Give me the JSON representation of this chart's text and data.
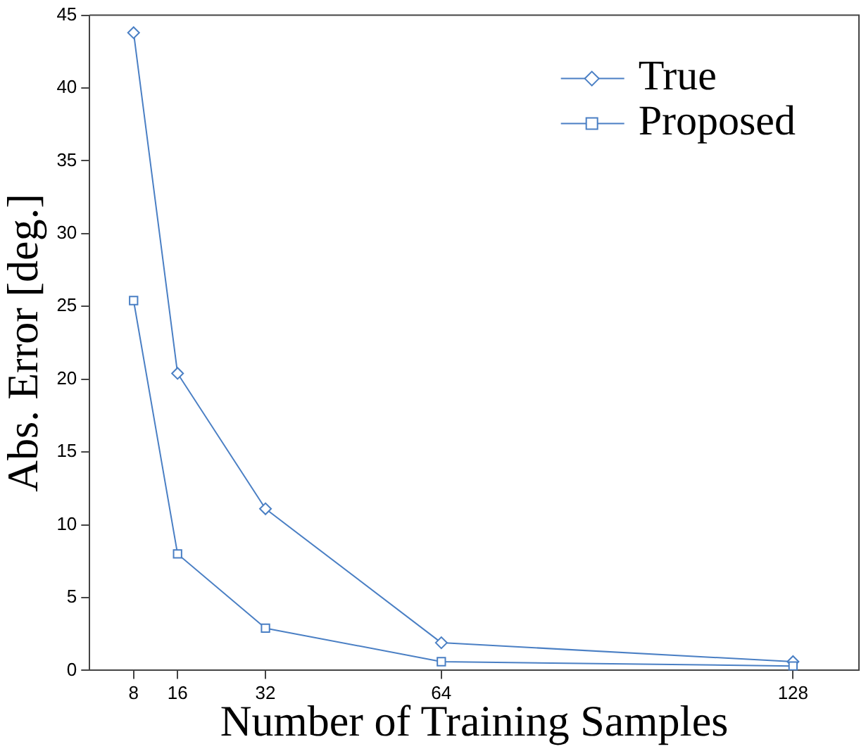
{
  "chart_data": {
    "type": "line",
    "xlabel": "Number of Training Samples",
    "ylabel": "Abs. Error [deg.]",
    "x": [
      8,
      16,
      32,
      64,
      128
    ],
    "series": [
      {
        "name": "True",
        "color": "#4a7fc4",
        "marker": "diamond",
        "values": [
          43.8,
          20.4,
          11.1,
          1.9,
          0.6
        ]
      },
      {
        "name": "Proposed",
        "color": "#4a7fc4",
        "marker": "square",
        "values": [
          25.4,
          8.0,
          2.9,
          0.6,
          0.3
        ]
      }
    ],
    "xlim": [
      0,
      140
    ],
    "xticks": [
      8,
      16,
      32,
      64,
      128
    ],
    "ylim": [
      0,
      45
    ],
    "yticks": [
      0,
      5,
      10,
      15,
      20,
      25,
      30,
      35,
      40,
      45
    ],
    "grid": false,
    "legend": "top right",
    "line_style": "solid"
  }
}
